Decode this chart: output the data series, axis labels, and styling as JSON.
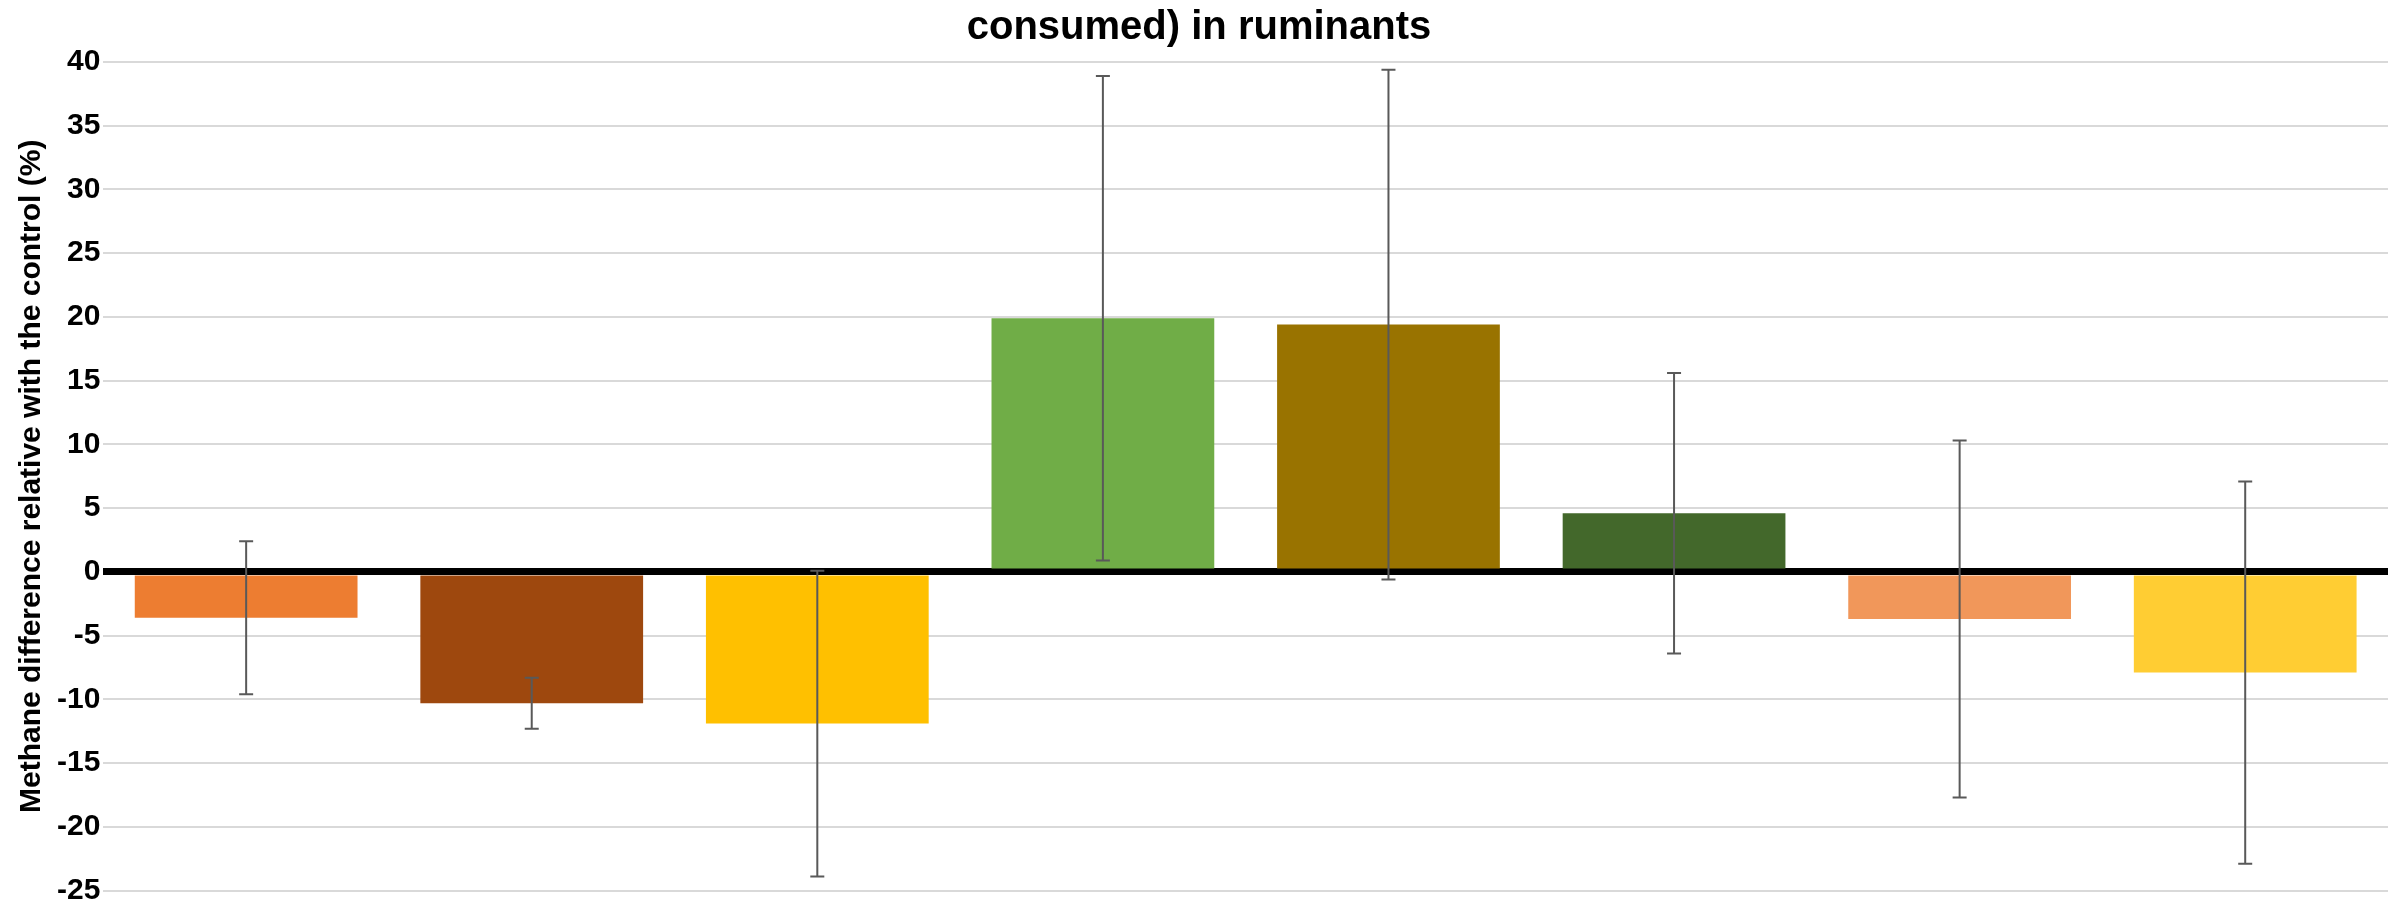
{
  "chart_data": {
    "type": "bar",
    "title": "consumed) in ruminants",
    "ylabel": "Methane difference relative with the control (%)",
    "categories": [
      null,
      null,
      null,
      null,
      null,
      null,
      null,
      null
    ],
    "values": [
      -3.6,
      -10.3,
      -11.9,
      19.9,
      19.4,
      4.6,
      -3.7,
      -7.9
    ],
    "colors": [
      "#ed7d31",
      "#9e480e",
      "#ffc000",
      "#70ad47",
      "#997300",
      "#43682b",
      "#f1975a",
      "#ffcd33"
    ],
    "errors": [
      6,
      2,
      12,
      19,
      20,
      11,
      14,
      15
    ],
    "ylim": [
      -25,
      40
    ],
    "yticks": [
      -25,
      -20,
      -15,
      -10,
      -5,
      0,
      5,
      10,
      15,
      20,
      25,
      30,
      35,
      40
    ],
    "grid": "y",
    "legend": false
  }
}
